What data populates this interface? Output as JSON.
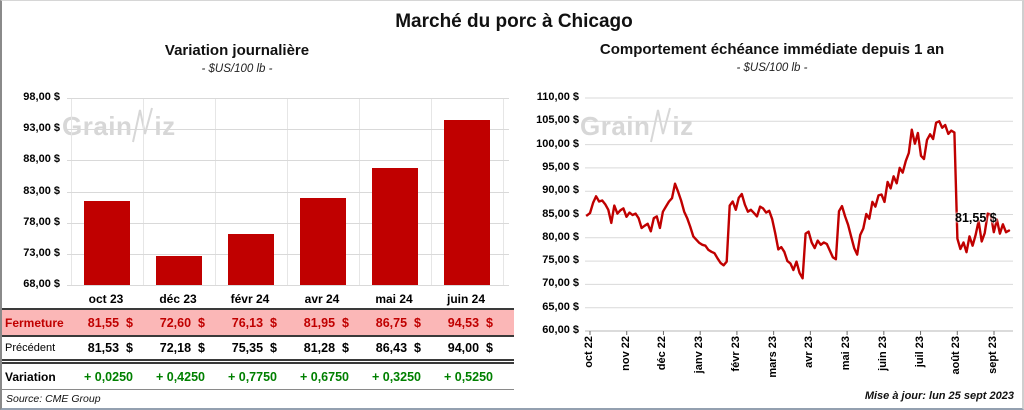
{
  "title": "Marché du porc à Chicago",
  "chart_data": [
    {
      "type": "bar",
      "title": "Variation journalière",
      "subtitle": "- $US/100 lb -",
      "categories": [
        "oct 23",
        "déc 23",
        "févr 24",
        "avr 24",
        "mai 24",
        "juin 24"
      ],
      "values": [
        81.55,
        72.6,
        76.13,
        81.95,
        86.75,
        94.53
      ],
      "ylim": [
        68,
        98
      ],
      "ytick_labels": [
        "98,00 $",
        "93,00 $",
        "88,00 $",
        "83,00 $",
        "78,00 $",
        "73,00 $",
        "68,00 $"
      ],
      "bar_color": "#c00000",
      "grid": true,
      "table": {
        "rows": [
          {
            "label": "Fermeture",
            "style": "ferm",
            "values": [
              "81,55 $",
              "72,60 $",
              "76,13 $",
              "81,95 $",
              "86,75 $",
              "94,53 $"
            ]
          },
          {
            "label": "Précédent",
            "style": "prec",
            "values": [
              "81,53 $",
              "72,18 $",
              "75,35 $",
              "81,28 $",
              "86,43 $",
              "94,00 $"
            ]
          },
          {
            "label": "Variation",
            "style": "vari",
            "values": [
              "+ 0,0250",
              "+ 0,4250",
              "+ 0,7750",
              "+ 0,6750",
              "+ 0,3250",
              "+ 0,5250"
            ]
          }
        ],
        "source": "Source: CME Group"
      }
    },
    {
      "type": "line",
      "title": "Comportement échéance immédiate depuis 1 an",
      "subtitle": "- $US/100 lb -",
      "x_labels": [
        "oct 22",
        "nov 22",
        "déc 22",
        "janv 23",
        "févr 23",
        "mars 23",
        "avr 23",
        "mai 23",
        "juin 23",
        "juil 23",
        "août 23",
        "sept 23"
      ],
      "ylim": [
        60,
        110
      ],
      "ytick_labels": [
        "110,00 $",
        "105,00 $",
        "100,00 $",
        "95,00 $",
        "90,00 $",
        "85,00 $",
        "80,00 $",
        "75,00 $",
        "70,00 $",
        "65,00 $",
        "60,00 $"
      ],
      "line_color": "#c00000",
      "end_label": "81,55 $",
      "series": [
        84.8,
        85.3,
        87.5,
        88.9,
        87.8,
        88.0,
        87.2,
        86.0,
        83.2,
        86.9,
        85.2,
        85.9,
        86.3,
        84.5,
        85.4,
        84.9,
        85.2,
        84.2,
        82.1,
        82.6,
        83.0,
        81.4,
        84.2,
        84.6,
        82.1,
        85.6,
        86.7,
        87.8,
        88.5,
        91.6,
        89.9,
        88.0,
        85.6,
        84.2,
        82.4,
        80.3,
        79.6,
        78.9,
        78.5,
        78.3,
        77.4,
        77.0,
        76.7,
        75.6,
        74.6,
        74.1,
        74.9,
        86.9,
        87.8,
        86.0,
        88.6,
        89.4,
        87.1,
        85.6,
        86.0,
        85.3,
        84.6,
        86.7,
        86.3,
        85.4,
        85.8,
        84.0,
        81.0,
        77.5,
        78.0,
        77.0,
        75.0,
        74.5,
        73.1,
        74.9,
        72.5,
        71.3,
        80.9,
        81.3,
        79.0,
        77.8,
        79.4,
        78.5,
        79.0,
        78.7,
        77.2,
        75.8,
        75.4,
        85.7,
        86.8,
        84.6,
        82.8,
        80.3,
        77.8,
        76.4,
        80.6,
        82.0,
        85.1,
        84.1,
        87.7,
        86.7,
        89.1,
        89.3,
        87.7,
        92.0,
        90.6,
        93.2,
        91.7,
        95.0,
        94.0,
        96.5,
        98.2,
        103.2,
        100.2,
        102.5,
        97.6,
        96.9,
        101.0,
        102.2,
        101.2,
        104.7,
        105.0,
        103.6,
        104.2,
        102.3,
        103.0,
        102.6,
        79.8,
        77.6,
        79.0,
        76.9,
        80.3,
        78.3,
        80.6,
        83.6,
        79.2,
        81.0,
        85.2,
        85.0,
        81.2,
        83.9,
        80.9,
        82.9,
        81.2,
        81.55
      ]
    }
  ],
  "watermark": {
    "prefix": "Grain",
    "suffix": "iz"
  },
  "footer": {
    "updated": "Mise à jour: lun 25 sept 2023"
  }
}
